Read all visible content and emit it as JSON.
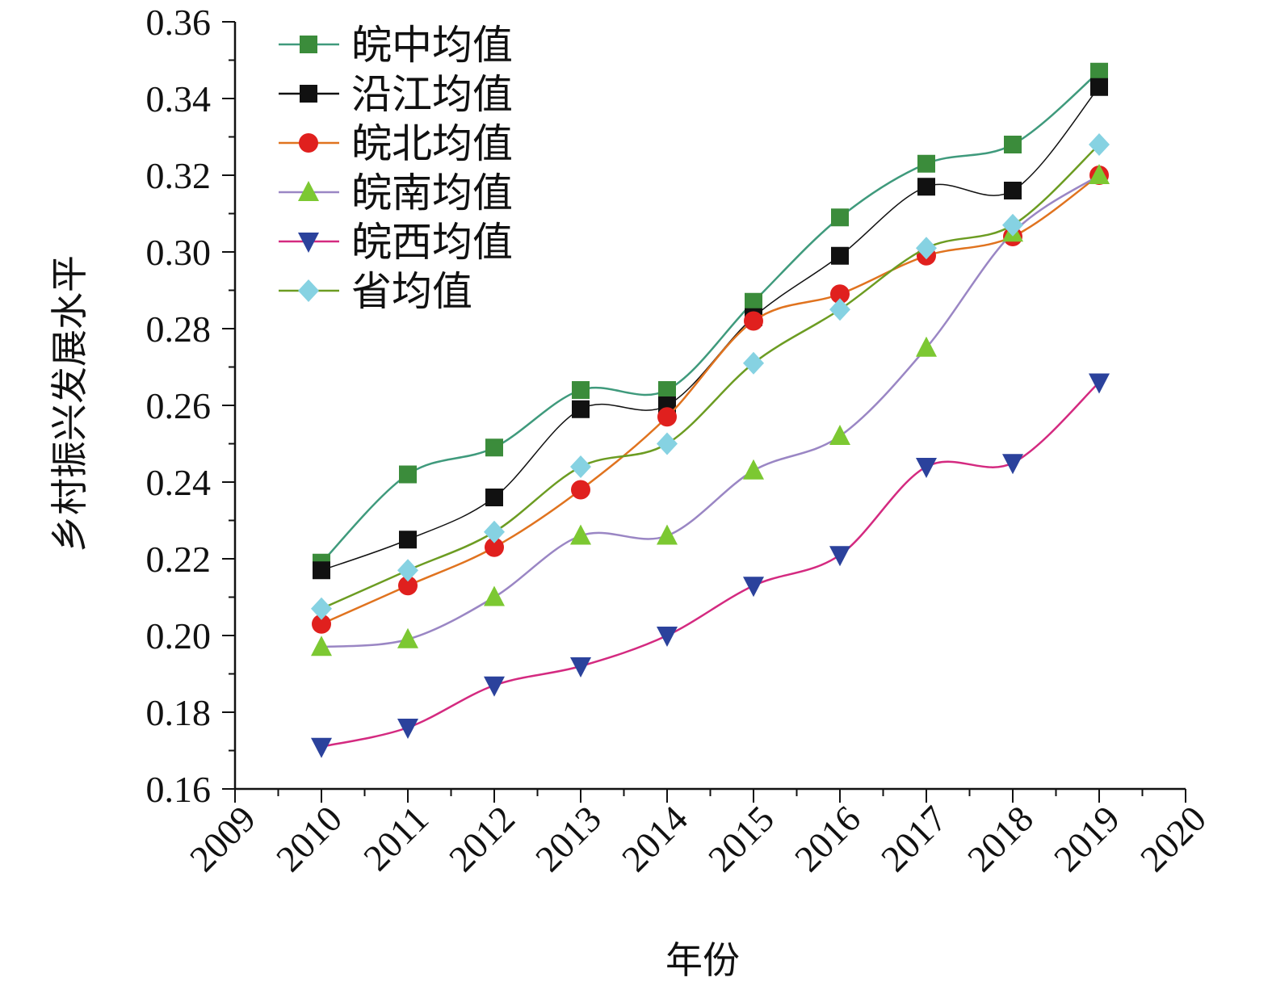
{
  "chart_data": {
    "type": "line",
    "title": "",
    "xlabel": "年份",
    "ylabel": "乡村振兴发展水平",
    "xlim": [
      2009,
      2020
    ],
    "ylim": [
      0.16,
      0.36
    ],
    "xticks": [
      "2009",
      "2010",
      "2011",
      "2012",
      "2013",
      "2014",
      "2015",
      "2016",
      "2017",
      "2018",
      "2019",
      "2020"
    ],
    "yticks": [
      "0.16",
      "0.18",
      "0.20",
      "0.22",
      "0.24",
      "0.26",
      "0.28",
      "0.30",
      "0.32",
      "0.34",
      "0.36"
    ],
    "legend_position": "top-left",
    "grid": false,
    "x": [
      2010,
      2011,
      2012,
      2013,
      2014,
      2015,
      2016,
      2017,
      2018,
      2019
    ],
    "series": [
      {
        "name": "皖中均值",
        "marker": "square",
        "line_color": "#3f9a7c",
        "marker_color": "#3b8c3b",
        "values": [
          0.219,
          0.242,
          0.249,
          0.264,
          0.264,
          0.287,
          0.309,
          0.323,
          0.328,
          0.347
        ]
      },
      {
        "name": "沿江均值",
        "marker": "square",
        "line_color": "#111111",
        "marker_color": "#111111",
        "values": [
          0.217,
          0.225,
          0.236,
          0.259,
          0.26,
          0.283,
          0.299,
          0.317,
          0.316,
          0.343
        ]
      },
      {
        "name": "皖北均值",
        "marker": "circle",
        "line_color": "#e0731f",
        "marker_color": "#e0201e",
        "values": [
          0.203,
          0.213,
          0.223,
          0.238,
          0.257,
          0.282,
          0.289,
          0.299,
          0.304,
          0.32
        ]
      },
      {
        "name": "皖南均值",
        "marker": "triangle-up",
        "line_color": "#9a86c4",
        "marker_color": "#7cc832",
        "values": [
          0.197,
          0.199,
          0.21,
          0.226,
          0.226,
          0.243,
          0.252,
          0.275,
          0.305,
          0.32
        ]
      },
      {
        "name": "皖西均值",
        "marker": "triangle-down",
        "line_color": "#d42a80",
        "marker_color": "#2b429c",
        "values": [
          0.171,
          0.176,
          0.187,
          0.192,
          0.2,
          0.213,
          0.221,
          0.244,
          0.245,
          0.266
        ]
      },
      {
        "name": "省均值",
        "marker": "diamond",
        "line_color": "#6c9c22",
        "marker_color": "#86d2e2",
        "values": [
          0.207,
          0.217,
          0.227,
          0.244,
          0.25,
          0.271,
          0.285,
          0.301,
          0.307,
          0.328
        ]
      }
    ]
  }
}
